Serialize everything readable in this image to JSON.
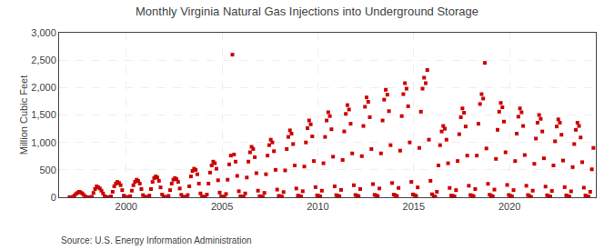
{
  "chart_data": {
    "type": "scatter",
    "title": "Monthly Virginia Natural Gas Injections into Underground Storage",
    "ylabel": "Million Cubic Feet",
    "annotations": [
      "Source: U.S. Energy Information Administration"
    ],
    "color": "#cc0000",
    "marker": "square",
    "grid": true,
    "xlim": [
      1996.5,
      2024.5
    ],
    "xticks": [
      2000,
      2005,
      2010,
      2015,
      2020
    ],
    "ylim": [
      0,
      3000
    ],
    "yticks": [
      0,
      500,
      {
        "value": 1000,
        "label": "1,000"
      },
      {
        "value": 1500,
        "label": "1,500"
      },
      {
        "value": 2000,
        "label": "2,000"
      },
      {
        "value": 2500,
        "label": "2,500"
      },
      {
        "value": 3000,
        "label": "3,000"
      }
    ],
    "x": [
      1997.041667,
      1997.125,
      1997.208333,
      1997.291667,
      1997.375,
      1997.458333,
      1997.541667,
      1997.625,
      1997.708333,
      1997.791667,
      1997.875,
      1997.958333,
      1998.041667,
      1998.125,
      1998.208333,
      1998.291667,
      1998.375,
      1998.458333,
      1998.541667,
      1998.625,
      1998.708333,
      1998.791667,
      1998.875,
      1998.958333,
      1999.041667,
      1999.125,
      1999.208333,
      1999.291667,
      1999.375,
      1999.458333,
      1999.541667,
      1999.625,
      1999.708333,
      1999.791667,
      1999.875,
      1999.958333,
      2000.041667,
      2000.125,
      2000.208333,
      2000.291667,
      2000.375,
      2000.458333,
      2000.541667,
      2000.625,
      2000.708333,
      2000.791667,
      2000.875,
      2000.958333,
      2001.041667,
      2001.125,
      2001.208333,
      2001.291667,
      2001.375,
      2001.458333,
      2001.541667,
      2001.625,
      2001.708333,
      2001.791667,
      2001.875,
      2001.958333,
      2002.041667,
      2002.125,
      2002.208333,
      2002.291667,
      2002.375,
      2002.458333,
      2002.541667,
      2002.625,
      2002.708333,
      2002.791667,
      2002.875,
      2002.958333,
      2003.041667,
      2003.125,
      2003.208333,
      2003.291667,
      2003.375,
      2003.458333,
      2003.541667,
      2003.625,
      2003.708333,
      2003.791667,
      2003.875,
      2003.958333,
      2004.041667,
      2004.125,
      2004.208333,
      2004.291667,
      2004.375,
      2004.458333,
      2004.541667,
      2004.625,
      2004.708333,
      2004.791667,
      2004.875,
      2004.958333,
      2005.041667,
      2005.125,
      2005.208333,
      2005.291667,
      2005.375,
      2005.458333,
      2005.541667,
      2005.625,
      2005.708333,
      2005.791667,
      2005.875,
      2005.958333,
      2006.041667,
      2006.125,
      2006.208333,
      2006.291667,
      2006.375,
      2006.458333,
      2006.541667,
      2006.625,
      2006.708333,
      2006.791667,
      2006.875,
      2006.958333,
      2007.041667,
      2007.125,
      2007.208333,
      2007.291667,
      2007.375,
      2007.458333,
      2007.541667,
      2007.625,
      2007.708333,
      2007.791667,
      2007.875,
      2007.958333,
      2008.041667,
      2008.125,
      2008.208333,
      2008.291667,
      2008.375,
      2008.458333,
      2008.541667,
      2008.625,
      2008.708333,
      2008.791667,
      2008.875,
      2008.958333,
      2009.041667,
      2009.125,
      2009.208333,
      2009.291667,
      2009.375,
      2009.458333,
      2009.541667,
      2009.625,
      2009.708333,
      2009.791667,
      2009.875,
      2009.958333,
      2010.041667,
      2010.125,
      2010.208333,
      2010.291667,
      2010.375,
      2010.458333,
      2010.541667,
      2010.625,
      2010.708333,
      2010.791667,
      2010.875,
      2010.958333,
      2011.041667,
      2011.125,
      2011.208333,
      2011.291667,
      2011.375,
      2011.458333,
      2011.541667,
      2011.625,
      2011.708333,
      2011.791667,
      2011.875,
      2011.958333,
      2012.041667,
      2012.125,
      2012.208333,
      2012.291667,
      2012.375,
      2012.458333,
      2012.541667,
      2012.625,
      2012.708333,
      2012.791667,
      2012.875,
      2012.958333,
      2013.041667,
      2013.125,
      2013.208333,
      2013.291667,
      2013.375,
      2013.458333,
      2013.541667,
      2013.625,
      2013.708333,
      2013.791667,
      2013.875,
      2013.958333,
      2014.041667,
      2014.125,
      2014.208333,
      2014.291667,
      2014.375,
      2014.458333,
      2014.541667,
      2014.625,
      2014.708333,
      2014.791667,
      2014.875,
      2014.958333,
      2015.041667,
      2015.125,
      2015.208333,
      2015.291667,
      2015.375,
      2015.458333,
      2015.541667,
      2015.625,
      2015.708333,
      2015.791667,
      2015.875,
      2015.958333,
      2016.041667,
      2016.125,
      2016.208333,
      2016.291667,
      2016.375,
      2016.458333,
      2016.541667,
      2016.625,
      2016.708333,
      2016.791667,
      2016.875,
      2016.958333,
      2017.041667,
      2017.125,
      2017.208333,
      2017.291667,
      2017.375,
      2017.458333,
      2017.541667,
      2017.625,
      2017.708333,
      2017.791667,
      2017.875,
      2017.958333,
      2018.041667,
      2018.125,
      2018.208333,
      2018.291667,
      2018.375,
      2018.458333,
      2018.541667,
      2018.625,
      2018.708333,
      2018.791667,
      2018.875,
      2018.958333,
      2019.041667,
      2019.125,
      2019.208333,
      2019.291667,
      2019.375,
      2019.458333,
      2019.541667,
      2019.625,
      2019.708333,
      2019.791667,
      2019.875,
      2019.958333,
      2020.041667,
      2020.125,
      2020.208333,
      2020.291667,
      2020.375,
      2020.458333,
      2020.541667,
      2020.625,
      2020.708333,
      2020.791667,
      2020.875,
      2020.958333,
      2021.041667,
      2021.125,
      2021.208333,
      2021.291667,
      2021.375,
      2021.458333,
      2021.541667,
      2021.625,
      2021.708333,
      2021.791667,
      2021.875,
      2021.958333,
      2022.041667,
      2022.125,
      2022.208333,
      2022.291667,
      2022.375,
      2022.458333,
      2022.541667,
      2022.625,
      2022.708333,
      2022.791667,
      2022.875,
      2022.958333,
      2023.041667,
      2023.125,
      2023.208333,
      2023.291667,
      2023.375,
      2023.458333,
      2023.541667,
      2023.625,
      2023.708333,
      2023.791667,
      2023.875,
      2023.958333,
      2024.041667,
      2024.125,
      2024.208333,
      2024.291667,
      2024.375
    ],
    "values": [
      2,
      1,
      5,
      30,
      60,
      80,
      100,
      90,
      70,
      40,
      10,
      2,
      1,
      1,
      8,
      80,
      150,
      200,
      180,
      160,
      120,
      70,
      20,
      3,
      2,
      1,
      15,
      100,
      200,
      250,
      280,
      260,
      220,
      130,
      30,
      5,
      3,
      2,
      20,
      120,
      220,
      280,
      320,
      300,
      250,
      150,
      40,
      8,
      5,
      3,
      30,
      150,
      280,
      350,
      380,
      360,
      300,
      180,
      50,
      10,
      4,
      3,
      25,
      130,
      250,
      320,
      350,
      330,
      280,
      160,
      45,
      8,
      6,
      4,
      40,
      200,
      380,
      480,
      520,
      500,
      420,
      250,
      70,
      12,
      8,
      5,
      50,
      250,
      450,
      580,
      650,
      620,
      520,
      310,
      85,
      15,
      10,
      6,
      60,
      320,
      600,
      760,
      2600,
      780,
      650,
      390,
      110,
      18,
      12,
      7,
      70,
      360,
      650,
      820,
      920,
      880,
      730,
      440,
      120,
      20,
      15,
      9,
      80,
      420,
      760,
      950,
      1050,
      1000,
      840,
      500,
      140,
      25,
      18,
      11,
      95,
      490,
      880,
      1100,
      1220,
      1160,
      970,
      580,
      160,
      30,
      22,
      13,
      110,
      560,
      1000,
      1260,
      1400,
      1330,
      1110,
      660,
      185,
      35,
      25,
      15,
      120,
      620,
      1100,
      1400,
      1550,
      1480,
      1240,
      740,
      200,
      38,
      28,
      17,
      135,
      680,
      1200,
      1520,
      1680,
      1600,
      1340,
      800,
      220,
      42,
      30,
      19,
      150,
      750,
      1300,
      1650,
      1820,
      1740,
      1460,
      880,
      240,
      45,
      33,
      20,
      160,
      800,
      1400,
      1780,
      1960,
      1870,
      1570,
      950,
      260,
      48,
      36,
      22,
      170,
      850,
      1480,
      1880,
      2080,
      1980,
      1660,
      1000,
      280,
      52,
      38,
      24,
      180,
      900,
      1560,
      1980,
      2180,
      2080,
      2320,
      1050,
      300,
      55,
      20,
      10,
      100,
      580,
      950,
      1200,
      1300,
      1250,
      1050,
      620,
      170,
      30,
      25,
      15,
      130,
      660,
      1150,
      1460,
      1620,
      1540,
      1290,
      760,
      210,
      40,
      30,
      18,
      150,
      760,
      1340,
      1700,
      1880,
      1800,
      2450,
      890,
      245,
      46,
      28,
      17,
      140,
      700,
      1230,
      1560,
      1720,
      1640,
      1380,
      820,
      225,
      42,
      26,
      16,
      130,
      660,
      1160,
      1470,
      1620,
      1550,
      1300,
      770,
      210,
      40,
      24,
      5,
      120,
      610,
      1070,
      1360,
      1500,
      1430,
      1200,
      710,
      195,
      37,
      22,
      14,
      115,
      580,
      1020,
      1290,
      1420,
      1360,
      1140,
      670,
      185,
      35,
      20,
      12,
      108,
      550,
      970,
      1230,
      1360,
      1300,
      1090,
      640,
      175,
      33,
      18,
      11,
      100,
      510,
      900
    ]
  }
}
